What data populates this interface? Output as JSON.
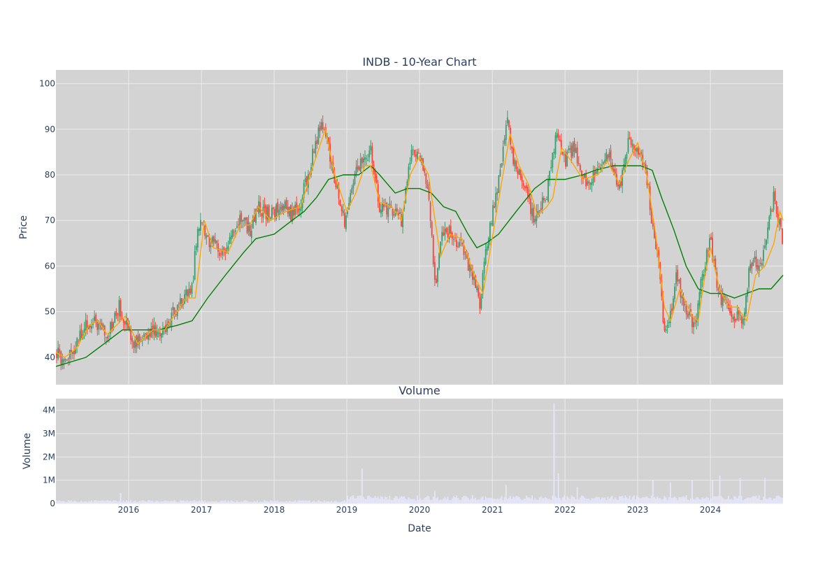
{
  "chart_data": {
    "type": "candlestick",
    "title": "INDB - 10-Year Chart",
    "xlabel": "Date",
    "colors": {
      "plot_bg": "#d3d3d3",
      "grid": "#ebebeb",
      "increasing": "#3d9970",
      "decreasing": "#ff4136",
      "ma_short": "#ffa500",
      "ma_long": "#008000",
      "volume": "#e6e6fa",
      "text": "#2a3f5f"
    },
    "x_range": [
      "2015-01-01",
      "2024-12-31"
    ],
    "x_ticks": [
      "2016",
      "2017",
      "2018",
      "2019",
      "2020",
      "2021",
      "2022",
      "2023",
      "2024"
    ],
    "price_panel": {
      "ylabel": "Price",
      "ylim": [
        34,
        103
      ],
      "yticks": [
        "40",
        "50",
        "60",
        "70",
        "80",
        "90",
        "100"
      ],
      "close_anchors": [
        [
          "2015-01-05",
          41
        ],
        [
          "2015-02-15",
          39
        ],
        [
          "2015-04-15",
          43
        ],
        [
          "2015-06-15",
          48
        ],
        [
          "2015-08-01",
          47
        ],
        [
          "2015-09-15",
          45
        ],
        [
          "2015-11-15",
          51
        ],
        [
          "2016-02-01",
          43
        ],
        [
          "2016-05-01",
          46
        ],
        [
          "2016-07-01",
          46
        ],
        [
          "2016-08-15",
          50
        ],
        [
          "2016-10-15",
          54
        ],
        [
          "2016-11-15",
          55
        ],
        [
          "2016-12-15",
          70
        ],
        [
          "2017-02-01",
          66
        ],
        [
          "2017-04-15",
          63
        ],
        [
          "2017-06-01",
          66
        ],
        [
          "2017-07-15",
          70
        ],
        [
          "2017-09-01",
          68
        ],
        [
          "2017-10-15",
          73
        ],
        [
          "2017-12-15",
          71
        ],
        [
          "2018-02-01",
          74
        ],
        [
          "2018-04-01",
          71
        ],
        [
          "2018-05-15",
          74
        ],
        [
          "2018-07-01",
          82
        ],
        [
          "2018-08-15",
          90
        ],
        [
          "2018-09-15",
          90
        ],
        [
          "2018-11-01",
          79
        ],
        [
          "2018-12-20",
          70
        ],
        [
          "2019-02-01",
          78
        ],
        [
          "2019-03-15",
          84
        ],
        [
          "2019-05-01",
          85
        ],
        [
          "2019-06-15",
          73
        ],
        [
          "2019-08-15",
          72
        ],
        [
          "2019-10-01",
          70
        ],
        [
          "2019-11-15",
          84
        ],
        [
          "2020-01-01",
          85
        ],
        [
          "2020-02-15",
          77
        ],
        [
          "2020-03-20",
          55
        ],
        [
          "2020-04-15",
          66
        ],
        [
          "2020-06-01",
          68
        ],
        [
          "2020-08-01",
          64
        ],
        [
          "2020-10-01",
          57
        ],
        [
          "2020-10-30",
          52
        ],
        [
          "2020-12-15",
          68
        ],
        [
          "2021-01-15",
          74
        ],
        [
          "2021-02-20",
          84
        ],
        [
          "2021-03-15",
          94
        ],
        [
          "2021-04-15",
          83
        ],
        [
          "2021-06-01",
          79
        ],
        [
          "2021-08-01",
          70
        ],
        [
          "2021-10-01",
          76
        ],
        [
          "2021-11-15",
          89
        ],
        [
          "2021-12-31",
          83
        ],
        [
          "2022-02-15",
          86
        ],
        [
          "2022-04-15",
          78
        ],
        [
          "2022-06-15",
          82
        ],
        [
          "2022-08-01",
          85
        ],
        [
          "2022-09-30",
          77
        ],
        [
          "2022-11-15",
          87
        ],
        [
          "2022-12-31",
          86
        ],
        [
          "2023-02-15",
          80
        ],
        [
          "2023-03-10",
          70
        ],
        [
          "2023-04-15",
          62
        ],
        [
          "2023-05-15",
          45
        ],
        [
          "2023-06-15",
          50
        ],
        [
          "2023-07-15",
          58
        ],
        [
          "2023-08-15",
          52
        ],
        [
          "2023-10-15",
          47
        ],
        [
          "2023-11-15",
          56
        ],
        [
          "2023-12-31",
          66
        ],
        [
          "2024-02-15",
          53
        ],
        [
          "2024-04-15",
          50
        ],
        [
          "2024-06-15",
          47
        ],
        [
          "2024-07-15",
          60
        ],
        [
          "2024-09-15",
          61
        ],
        [
          "2024-11-15",
          75
        ],
        [
          "2024-12-31",
          65
        ]
      ],
      "ma_short_anchors": [
        [
          "2015-01-01",
          41
        ],
        [
          "2015-02-15",
          40
        ],
        [
          "2015-04-15",
          42
        ],
        [
          "2015-06-15",
          47
        ],
        [
          "2015-08-01",
          48
        ],
        [
          "2015-09-15",
          45
        ],
        [
          "2015-11-01",
          47
        ],
        [
          "2015-12-15",
          49
        ],
        [
          "2016-02-15",
          43
        ],
        [
          "2016-05-01",
          46
        ],
        [
          "2016-07-01",
          46
        ],
        [
          "2016-08-15",
          49
        ],
        [
          "2016-10-15",
          53
        ],
        [
          "2016-12-01",
          53
        ],
        [
          "2017-01-15",
          70
        ],
        [
          "2017-03-01",
          64
        ],
        [
          "2017-05-15",
          63
        ],
        [
          "2017-07-15",
          69
        ],
        [
          "2017-09-01",
          69
        ],
        [
          "2017-10-15",
          73
        ],
        [
          "2017-12-15",
          70
        ],
        [
          "2018-03-01",
          72
        ],
        [
          "2018-05-15",
          73
        ],
        [
          "2018-07-01",
          80
        ],
        [
          "2018-09-15",
          90
        ],
        [
          "2018-11-01",
          80
        ],
        [
          "2019-01-01",
          72
        ],
        [
          "2019-02-15",
          76
        ],
        [
          "2019-04-01",
          82
        ],
        [
          "2019-05-01",
          82
        ],
        [
          "2019-06-15",
          74
        ],
        [
          "2019-08-15",
          73
        ],
        [
          "2019-10-01",
          70
        ],
        [
          "2019-11-15",
          80
        ],
        [
          "2020-01-01",
          84
        ],
        [
          "2020-02-15",
          80
        ],
        [
          "2020-04-15",
          62
        ],
        [
          "2020-06-01",
          67
        ],
        [
          "2020-08-01",
          66
        ],
        [
          "2020-10-01",
          58
        ],
        [
          "2020-11-15",
          54
        ],
        [
          "2020-12-31",
          66
        ],
        [
          "2021-02-15",
          78
        ],
        [
          "2021-03-31",
          89
        ],
        [
          "2021-05-15",
          82
        ],
        [
          "2021-07-01",
          78
        ],
        [
          "2021-08-15",
          71
        ],
        [
          "2021-10-01",
          73
        ],
        [
          "2021-11-01",
          75
        ],
        [
          "2021-12-15",
          86
        ],
        [
          "2022-02-01",
          83
        ],
        [
          "2022-04-01",
          79
        ],
        [
          "2022-06-15",
          80
        ],
        [
          "2022-08-01",
          83
        ],
        [
          "2022-10-01",
          78
        ],
        [
          "2022-11-15",
          83
        ],
        [
          "2023-01-01",
          87
        ],
        [
          "2023-02-15",
          80
        ],
        [
          "2023-04-01",
          67
        ],
        [
          "2023-05-15",
          51
        ],
        [
          "2023-06-15",
          48
        ],
        [
          "2023-08-01",
          55
        ],
        [
          "2023-10-01",
          49
        ],
        [
          "2023-11-01",
          48
        ],
        [
          "2023-12-01",
          57
        ],
        [
          "2024-01-01",
          64
        ],
        [
          "2024-02-15",
          55
        ],
        [
          "2024-04-01",
          51
        ],
        [
          "2024-05-15",
          51
        ],
        [
          "2024-07-01",
          48
        ],
        [
          "2024-08-15",
          58
        ],
        [
          "2024-10-01",
          60
        ],
        [
          "2024-11-15",
          65
        ],
        [
          "2024-12-15",
          72
        ],
        [
          "2024-12-31",
          70
        ]
      ],
      "ma_long_anchors": [
        [
          "2015-01-01",
          38
        ],
        [
          "2015-06-01",
          40
        ],
        [
          "2015-09-01",
          43
        ],
        [
          "2015-12-01",
          46
        ],
        [
          "2016-06-01",
          46
        ],
        [
          "2016-09-01",
          47
        ],
        [
          "2016-11-15",
          48
        ],
        [
          "2017-02-01",
          53
        ],
        [
          "2017-05-01",
          58
        ],
        [
          "2017-08-01",
          63
        ],
        [
          "2017-10-01",
          66
        ],
        [
          "2018-01-01",
          67
        ],
        [
          "2018-04-01",
          70
        ],
        [
          "2018-06-01",
          72
        ],
        [
          "2018-08-01",
          75
        ],
        [
          "2018-10-01",
          79
        ],
        [
          "2018-12-15",
          80
        ],
        [
          "2019-03-01",
          80
        ],
        [
          "2019-05-01",
          82
        ],
        [
          "2019-06-15",
          80
        ],
        [
          "2019-09-01",
          76
        ],
        [
          "2019-11-01",
          77
        ],
        [
          "2020-01-01",
          77
        ],
        [
          "2020-03-01",
          76
        ],
        [
          "2020-05-01",
          73
        ],
        [
          "2020-07-01",
          72
        ],
        [
          "2020-09-01",
          67
        ],
        [
          "2020-10-15",
          64
        ],
        [
          "2020-12-01",
          65
        ],
        [
          "2021-02-01",
          67
        ],
        [
          "2021-05-01",
          72
        ],
        [
          "2021-08-01",
          77
        ],
        [
          "2021-10-01",
          79
        ],
        [
          "2022-01-01",
          79
        ],
        [
          "2022-04-01",
          80
        ],
        [
          "2022-06-01",
          81
        ],
        [
          "2022-09-01",
          82
        ],
        [
          "2022-11-15",
          82
        ],
        [
          "2023-01-15",
          82
        ],
        [
          "2023-03-15",
          81
        ],
        [
          "2023-05-01",
          75
        ],
        [
          "2023-07-01",
          68
        ],
        [
          "2023-09-01",
          60
        ],
        [
          "2023-11-01",
          55
        ],
        [
          "2024-01-01",
          54
        ],
        [
          "2024-03-01",
          54
        ],
        [
          "2024-05-01",
          53
        ],
        [
          "2024-07-01",
          54
        ],
        [
          "2024-09-01",
          55
        ],
        [
          "2024-11-01",
          55
        ],
        [
          "2024-12-31",
          58
        ]
      ]
    },
    "volume_panel": {
      "subtitle": "Volume",
      "ylabel": "Volume",
      "ylim": [
        0,
        4500000
      ],
      "yticks": [
        "0",
        "1M",
        "2M",
        "3M",
        "4M"
      ],
      "spikes": [
        [
          "2015-11-20",
          450000
        ],
        [
          "2019-03-15",
          1500000
        ],
        [
          "2020-03-20",
          550000
        ],
        [
          "2021-03-10",
          800000
        ],
        [
          "2021-11-10",
          4300000
        ],
        [
          "2021-11-25",
          1300000
        ],
        [
          "2022-03-01",
          700000
        ],
        [
          "2023-03-15",
          1000000
        ],
        [
          "2023-06-15",
          900000
        ],
        [
          "2023-10-01",
          1000000
        ],
        [
          "2024-01-15",
          1000000
        ],
        [
          "2024-02-15",
          1200000
        ],
        [
          "2024-06-01",
          1100000
        ],
        [
          "2024-10-01",
          1100000
        ]
      ]
    }
  }
}
